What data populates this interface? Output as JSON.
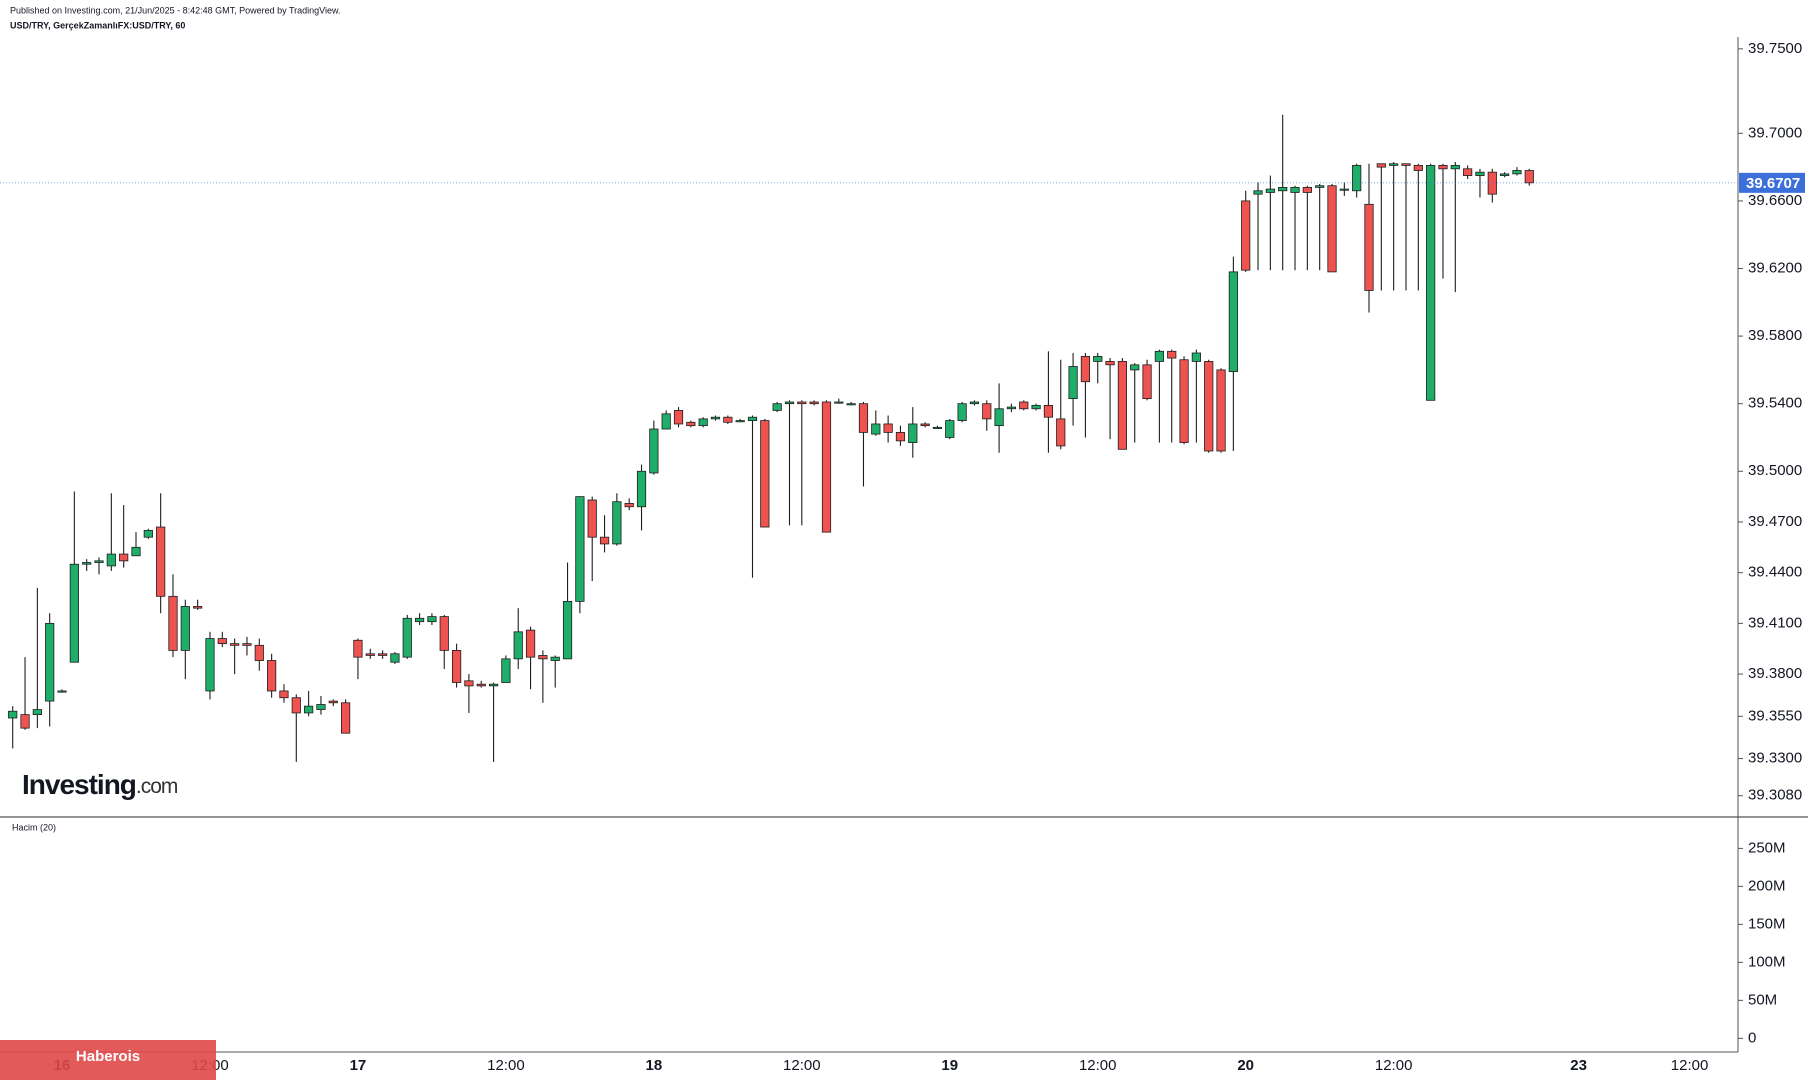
{
  "header": {
    "published": "Published on Investing.com, 21/Jun/2025 - 8:42:48 GMT, Powered by TradingView.",
    "symbol": "USD/TRY, GerçekZamanlıFX:USD/TRY, 60"
  },
  "logo": {
    "brand": "Investing",
    "suffix": ".com"
  },
  "watermark": "Haberois",
  "chart_data": [
    {
      "type": "candlestick",
      "up_color": "#1fae6a",
      "down_color": "#ef5350",
      "last_price": 39.6707,
      "last_price_color": "#3b6fd9",
      "categories": [
        null,
        null,
        null,
        null,
        "16",
        null,
        null,
        null,
        null,
        null,
        null,
        null,
        null,
        null,
        null,
        null,
        "12:00",
        null,
        null,
        null,
        null,
        null,
        null,
        null,
        null,
        null,
        null,
        null,
        "17",
        null,
        null,
        null,
        null,
        null,
        null,
        null,
        null,
        null,
        null,
        null,
        "12:00",
        null,
        null,
        null,
        null,
        null,
        null,
        null,
        null,
        null,
        null,
        null,
        "18",
        null,
        null,
        null,
        null,
        null,
        null,
        null,
        null,
        null,
        null,
        null,
        "12:00",
        null,
        null,
        null,
        null,
        null,
        null,
        null,
        null,
        null,
        null,
        null,
        "19",
        null,
        null,
        null,
        null,
        null,
        null,
        null,
        null,
        null,
        null,
        null,
        "12:00",
        null,
        null,
        null,
        null,
        null,
        null,
        null,
        null,
        null,
        null,
        null,
        "20",
        null,
        null,
        null,
        null,
        null,
        null,
        null,
        null,
        null,
        null,
        null,
        "12:00",
        null,
        null,
        null,
        null,
        null,
        null,
        null,
        null,
        null,
        null,
        null,
        null,
        null,
        null,
        "23",
        null,
        null,
        null,
        null,
        null,
        null,
        null,
        null,
        "12:00"
      ],
      "open": [
        39.354,
        39.356,
        39.356,
        39.364,
        39.37,
        39.387,
        39.445,
        39.446,
        39.444,
        39.451,
        39.45,
        39.461,
        39.467,
        39.426,
        39.394,
        39.42,
        39.37,
        39.401,
        39.398,
        39.398,
        39.397,
        39.388,
        39.37,
        39.366,
        39.357,
        39.359,
        39.364,
        39.363,
        39.4,
        39.392,
        39.392,
        39.387,
        39.39,
        39.411,
        39.411,
        39.414,
        39.394,
        39.376,
        39.374,
        39.373,
        39.375,
        39.389,
        39.406,
        39.391,
        39.388,
        39.389,
        39.423,
        39.483,
        39.461,
        39.457,
        39.481,
        39.479,
        39.499,
        39.525,
        39.536,
        39.529,
        39.527,
        39.531,
        39.532,
        39.53,
        39.53,
        39.53,
        39.536,
        39.54,
        39.541,
        39.541,
        39.541,
        39.541,
        39.54,
        39.54,
        39.522,
        39.528,
        39.523,
        39.517,
        39.528,
        39.526,
        39.52,
        39.53,
        39.54,
        39.54,
        39.527,
        39.537,
        39.541,
        39.537,
        39.539,
        39.531,
        39.543,
        39.568,
        39.565,
        39.565,
        39.565,
        39.56,
        39.563,
        39.565,
        39.571,
        39.566,
        39.565,
        39.565,
        39.56,
        39.559,
        39.66,
        39.664,
        39.665,
        39.666,
        39.665,
        39.668,
        39.668,
        39.669,
        39.667,
        39.666,
        39.658,
        39.682,
        39.681,
        39.682,
        39.681,
        39.542,
        39.681,
        39.679,
        39.679,
        39.675,
        39.677,
        39.675,
        39.676,
        39.678,
        null,
        null,
        null,
        null,
        null,
        null,
        null,
        null,
        null,
        null,
        null,
        null,
        null
      ],
      "high": [
        39.361,
        39.39,
        39.431,
        39.416,
        39.371,
        39.488,
        39.448,
        39.449,
        39.487,
        39.48,
        39.464,
        39.466,
        39.487,
        39.439,
        39.424,
        39.424,
        39.405,
        39.405,
        39.401,
        39.402,
        39.401,
        39.392,
        39.374,
        39.368,
        39.37,
        39.367,
        39.365,
        39.365,
        39.401,
        39.395,
        39.394,
        39.393,
        39.415,
        39.416,
        39.416,
        39.415,
        39.398,
        39.38,
        39.376,
        39.375,
        39.391,
        39.419,
        39.408,
        39.394,
        39.391,
        39.446,
        39.485,
        39.485,
        39.474,
        39.487,
        39.484,
        39.504,
        39.53,
        39.536,
        39.538,
        39.53,
        39.532,
        39.533,
        39.533,
        39.531,
        39.533,
        39.531,
        39.541,
        39.542,
        39.542,
        39.542,
        39.542,
        39.543,
        39.541,
        39.541,
        39.536,
        39.533,
        39.527,
        39.538,
        39.529,
        39.527,
        39.531,
        39.541,
        39.542,
        39.542,
        39.552,
        39.54,
        39.542,
        39.54,
        39.571,
        39.566,
        39.57,
        39.57,
        39.57,
        39.567,
        39.567,
        39.564,
        39.566,
        39.572,
        39.572,
        39.568,
        39.572,
        39.566,
        39.561,
        39.627,
        39.666,
        39.671,
        39.675,
        39.711,
        39.669,
        39.669,
        39.67,
        39.67,
        39.671,
        39.682,
        39.682,
        39.682,
        39.683,
        39.682,
        39.682,
        39.682,
        39.682,
        39.683,
        39.681,
        39.679,
        39.679,
        39.677,
        39.68,
        39.679,
        null,
        null,
        null,
        null,
        null,
        null,
        null,
        null,
        null,
        null,
        null,
        null,
        null
      ],
      "low": [
        39.336,
        39.347,
        39.348,
        39.349,
        39.369,
        39.387,
        39.441,
        39.439,
        39.441,
        39.443,
        39.45,
        39.46,
        39.416,
        39.39,
        39.377,
        39.418,
        39.365,
        39.396,
        39.38,
        39.391,
        39.382,
        39.366,
        39.363,
        39.328,
        39.355,
        39.356,
        39.361,
        39.345,
        39.377,
        39.389,
        39.389,
        39.386,
        39.389,
        39.409,
        39.409,
        39.383,
        39.372,
        39.357,
        39.372,
        39.328,
        39.375,
        39.383,
        39.371,
        39.363,
        39.372,
        39.389,
        39.416,
        39.435,
        39.452,
        39.456,
        39.477,
        39.465,
        39.498,
        39.525,
        39.526,
        39.526,
        39.526,
        39.53,
        39.528,
        39.529,
        39.437,
        39.467,
        39.535,
        39.468,
        39.468,
        39.539,
        39.464,
        39.54,
        39.539,
        39.491,
        39.521,
        39.517,
        39.515,
        39.508,
        39.526,
        39.525,
        39.519,
        39.529,
        39.539,
        39.524,
        39.511,
        39.535,
        39.536,
        39.536,
        39.511,
        39.513,
        39.527,
        39.52,
        39.552,
        39.519,
        39.513,
        39.517,
        39.542,
        39.517,
        39.517,
        39.516,
        39.517,
        39.511,
        39.511,
        39.512,
        39.618,
        39.619,
        39.619,
        39.619,
        39.619,
        39.619,
        39.619,
        39.618,
        39.663,
        39.662,
        39.594,
        39.607,
        39.607,
        39.607,
        39.607,
        39.542,
        39.614,
        39.606,
        39.673,
        39.662,
        39.659,
        39.674,
        39.675,
        39.669,
        null,
        null,
        null,
        null,
        null,
        null,
        null,
        null,
        null,
        null,
        null,
        null,
        null
      ],
      "close": [
        39.358,
        39.348,
        39.359,
        39.41,
        39.37,
        39.445,
        39.446,
        39.447,
        39.451,
        39.447,
        39.455,
        39.465,
        39.426,
        39.394,
        39.42,
        39.419,
        39.401,
        39.398,
        39.397,
        39.397,
        39.388,
        39.37,
        39.366,
        39.357,
        39.361,
        39.362,
        39.363,
        39.345,
        39.39,
        39.391,
        39.391,
        39.392,
        39.413,
        39.413,
        39.414,
        39.394,
        39.375,
        39.373,
        39.373,
        39.374,
        39.389,
        39.405,
        39.39,
        39.389,
        39.39,
        39.423,
        39.485,
        39.461,
        39.457,
        39.482,
        39.479,
        39.5,
        39.525,
        39.534,
        39.528,
        39.527,
        39.531,
        39.532,
        39.529,
        39.53,
        39.532,
        39.467,
        39.54,
        39.541,
        39.54,
        39.54,
        39.464,
        39.541,
        39.54,
        39.523,
        39.528,
        39.523,
        39.518,
        39.528,
        39.527,
        39.526,
        39.53,
        39.54,
        39.541,
        39.531,
        39.537,
        39.538,
        39.537,
        39.539,
        39.532,
        39.515,
        39.562,
        39.553,
        39.568,
        39.563,
        39.513,
        39.563,
        39.543,
        39.571,
        39.567,
        39.517,
        39.57,
        39.512,
        39.512,
        39.618,
        39.619,
        39.666,
        39.667,
        39.668,
        39.668,
        39.665,
        39.669,
        39.618,
        39.667,
        39.681,
        39.607,
        39.68,
        39.682,
        39.681,
        39.678,
        39.681,
        39.679,
        39.681,
        39.675,
        39.677,
        39.664,
        39.676,
        39.678,
        39.6707,
        null,
        null,
        null,
        null,
        null,
        null,
        null,
        null,
        null,
        null,
        null,
        null,
        null
      ],
      "ylim": [
        39.296,
        39.757
      ],
      "yticks": [
        {
          "value": 39.75,
          "label": "39.7500"
        },
        {
          "value": 39.7,
          "label": "39.7000"
        },
        {
          "value": 39.66,
          "label": "39.6600"
        },
        {
          "value": 39.62,
          "label": "39.6200"
        },
        {
          "value": 39.58,
          "label": "39.5800"
        },
        {
          "value": 39.54,
          "label": "39.5400"
        },
        {
          "value": 39.5,
          "label": "39.5000"
        },
        {
          "value": 39.47,
          "label": "39.4700"
        },
        {
          "value": 39.44,
          "label": "39.4400"
        },
        {
          "value": 39.41,
          "label": "39.4100"
        },
        {
          "value": 39.38,
          "label": "39.3800"
        },
        {
          "value": 39.355,
          "label": "39.3550"
        },
        {
          "value": 39.33,
          "label": "39.3300"
        },
        {
          "value": 39.308,
          "label": "39.3080"
        }
      ]
    },
    {
      "type": "bar",
      "title": "Hacim (20)",
      "ylim": [
        -18000000,
        290000000
      ],
      "yticks": [
        {
          "value": 250000000,
          "label": "250M"
        },
        {
          "value": 200000000,
          "label": "200M"
        },
        {
          "value": 150000000,
          "label": "150M"
        },
        {
          "value": 100000000,
          "label": "100M"
        },
        {
          "value": 50000000,
          "label": "50M"
        },
        0
      ]
    }
  ]
}
